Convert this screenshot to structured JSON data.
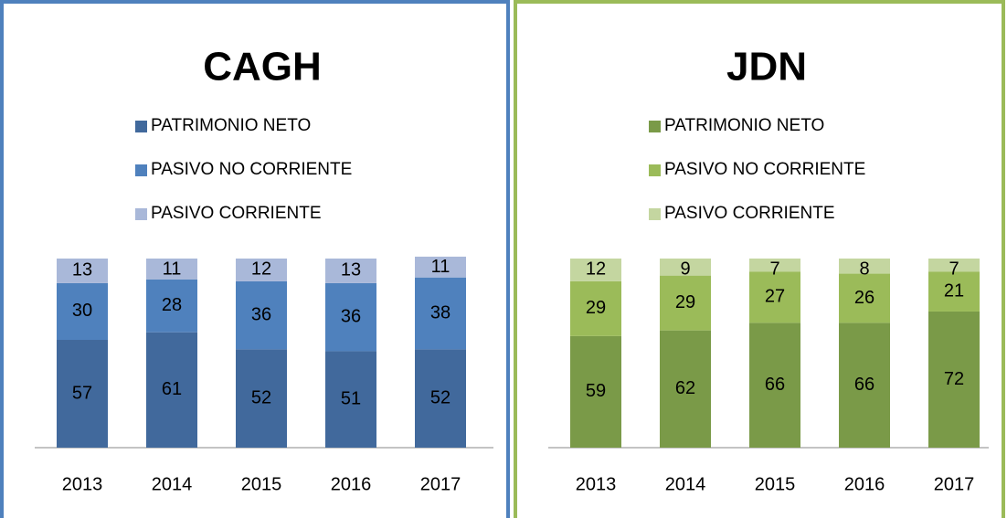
{
  "chart_data": [
    {
      "type": "bar",
      "stacked": true,
      "title": "CAGH",
      "categories": [
        "2013",
        "2014",
        "2015",
        "2016",
        "2017"
      ],
      "series": [
        {
          "name": "PATRIMONIO NETO",
          "color": "#41699c",
          "values": [
            57,
            61,
            52,
            51,
            52
          ]
        },
        {
          "name": "PASIVO NO CORRIENTE",
          "color": "#4f81bd",
          "values": [
            30,
            28,
            36,
            36,
            38
          ]
        },
        {
          "name": "PASIVO CORRIENTE",
          "color": "#a9b8d9",
          "values": [
            13,
            11,
            12,
            13,
            11
          ]
        }
      ],
      "value_suffix_labels": null,
      "border_color": "#4f81bd"
    },
    {
      "type": "bar",
      "stacked": true,
      "title": "JDN",
      "categories": [
        "2013",
        "2014",
        "2015",
        "2016",
        "2017"
      ],
      "series": [
        {
          "name": "PATRIMONIO NETO",
          "color": "#7a9a48",
          "values": [
            59,
            62,
            66,
            66,
            72
          ]
        },
        {
          "name": "PASIVO NO CORRIENTE",
          "color": "#9bbb59",
          "values": [
            29,
            29,
            27,
            26,
            21
          ]
        },
        {
          "name": "PASIVO CORRIENTE",
          "color": "#c4d6a0",
          "values": [
            12,
            9,
            7,
            8,
            7
          ]
        }
      ],
      "value_suffix_labels": null,
      "border_color": "#9bbb59"
    }
  ]
}
